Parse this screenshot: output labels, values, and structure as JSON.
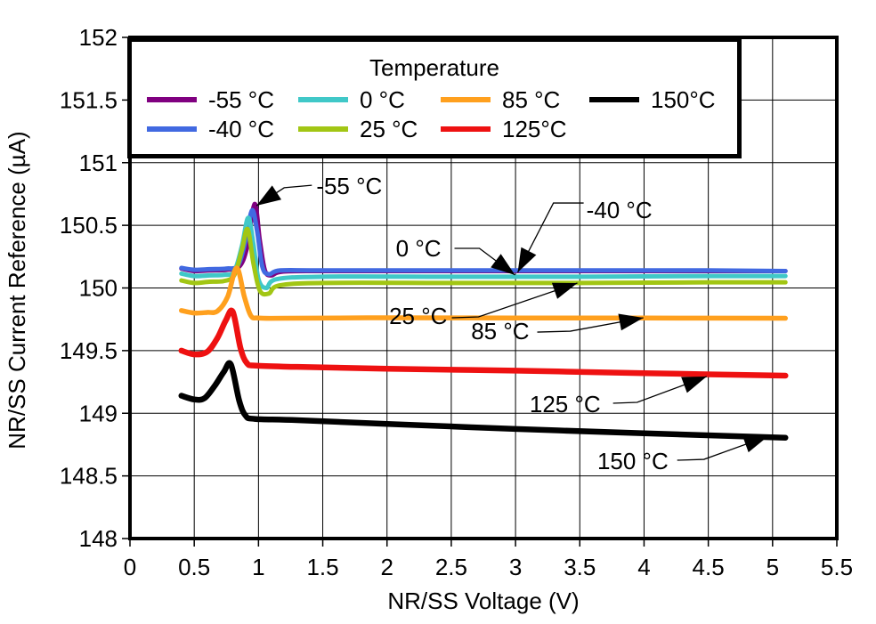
{
  "chart_data": {
    "type": "line",
    "title": "",
    "xlabel": "NR/SS Voltage (V)",
    "ylabel": "NR/SS Current Reference (µA)",
    "xlim": [
      0,
      5.5
    ],
    "ylim": [
      148,
      152
    ],
    "xticks": [
      0,
      0.5,
      1,
      1.5,
      2,
      2.5,
      3,
      3.5,
      4,
      4.5,
      5,
      5.5
    ],
    "yticks": [
      148,
      148.5,
      149,
      149.5,
      150,
      150.5,
      151,
      151.5,
      152
    ],
    "grid": true,
    "legend": {
      "title": "Temperature",
      "position": "top-left-inside",
      "columns": [
        [
          0,
          1
        ],
        [
          2,
          3
        ],
        [
          4,
          5
        ],
        [
          6
        ]
      ]
    },
    "series": [
      {
        "name": "-55 °C",
        "color": "#800080",
        "width": 5,
        "points": [
          [
            0.4,
            150.155
          ],
          [
            0.5,
            150.135
          ],
          [
            0.62,
            150.14
          ],
          [
            0.75,
            150.145
          ],
          [
            0.85,
            150.17
          ],
          [
            0.91,
            150.32
          ],
          [
            0.97,
            150.67
          ],
          [
            1.01,
            150.38
          ],
          [
            1.05,
            150.14
          ],
          [
            1.1,
            150.1
          ],
          [
            1.18,
            150.13
          ],
          [
            1.5,
            150.135
          ],
          [
            2.5,
            150.135
          ],
          [
            3.5,
            150.135
          ],
          [
            4.5,
            150.135
          ],
          [
            5.1,
            150.135
          ]
        ]
      },
      {
        "name": "-40 °C",
        "color": "#4169E1",
        "width": 5,
        "points": [
          [
            0.4,
            150.16
          ],
          [
            0.5,
            150.145
          ],
          [
            0.62,
            150.15
          ],
          [
            0.75,
            150.155
          ],
          [
            0.84,
            150.18
          ],
          [
            0.9,
            150.38
          ],
          [
            0.95,
            150.62
          ],
          [
            0.99,
            150.45
          ],
          [
            1.03,
            150.17
          ],
          [
            1.08,
            150.11
          ],
          [
            1.17,
            150.14
          ],
          [
            1.5,
            150.14
          ],
          [
            2.5,
            150.14
          ],
          [
            3.5,
            150.14
          ],
          [
            4.5,
            150.14
          ],
          [
            5.1,
            150.135
          ]
        ]
      },
      {
        "name": "0 °C",
        "color": "#40C8C8",
        "width": 5,
        "points": [
          [
            0.4,
            150.115
          ],
          [
            0.5,
            150.095
          ],
          [
            0.62,
            150.1
          ],
          [
            0.73,
            150.105
          ],
          [
            0.81,
            150.13
          ],
          [
            0.87,
            150.33
          ],
          [
            0.92,
            150.56
          ],
          [
            0.96,
            150.35
          ],
          [
            1.0,
            150.07
          ],
          [
            1.06,
            150.0
          ],
          [
            1.14,
            150.07
          ],
          [
            1.5,
            150.09
          ],
          [
            2.5,
            150.09
          ],
          [
            3.5,
            150.09
          ],
          [
            4.5,
            150.095
          ],
          [
            5.1,
            150.095
          ]
        ]
      },
      {
        "name": "25 °C",
        "color": "#A2C614",
        "width": 5,
        "points": [
          [
            0.4,
            150.06
          ],
          [
            0.5,
            150.04
          ],
          [
            0.62,
            150.05
          ],
          [
            0.73,
            150.055
          ],
          [
            0.81,
            150.1
          ],
          [
            0.87,
            150.3
          ],
          [
            0.915,
            150.47
          ],
          [
            0.96,
            150.2
          ],
          [
            1.01,
            149.98
          ],
          [
            1.08,
            149.955
          ],
          [
            1.16,
            150.02
          ],
          [
            1.5,
            150.04
          ],
          [
            2.5,
            150.04
          ],
          [
            3.5,
            150.04
          ],
          [
            4.5,
            150.045
          ],
          [
            5.1,
            150.045
          ]
        ]
      },
      {
        "name": "85 °C",
        "color": "#FFA01E",
        "width": 5.5,
        "points": [
          [
            0.4,
            149.82
          ],
          [
            0.5,
            149.8
          ],
          [
            0.6,
            149.805
          ],
          [
            0.68,
            149.815
          ],
          [
            0.76,
            149.93
          ],
          [
            0.83,
            150.16
          ],
          [
            0.89,
            149.93
          ],
          [
            0.94,
            149.78
          ],
          [
            1.0,
            149.76
          ],
          [
            1.2,
            149.758
          ],
          [
            2.0,
            149.762
          ],
          [
            3.0,
            149.76
          ],
          [
            4.0,
            149.76
          ],
          [
            5.1,
            149.758
          ]
        ]
      },
      {
        "name": "125°C",
        "color": "#EE1111",
        "width": 6.5,
        "points": [
          [
            0.4,
            149.5
          ],
          [
            0.5,
            149.47
          ],
          [
            0.6,
            149.49
          ],
          [
            0.68,
            149.6
          ],
          [
            0.745,
            149.74
          ],
          [
            0.8,
            149.81
          ],
          [
            0.86,
            149.52
          ],
          [
            0.91,
            149.4
          ],
          [
            0.98,
            149.38
          ],
          [
            1.3,
            149.37
          ],
          [
            2.0,
            149.355
          ],
          [
            3.0,
            149.34
          ],
          [
            4.0,
            149.32
          ],
          [
            5.1,
            149.3
          ]
        ]
      },
      {
        "name": "150°C",
        "color": "#000000",
        "width": 6.5,
        "points": [
          [
            0.4,
            149.14
          ],
          [
            0.5,
            149.11
          ],
          [
            0.58,
            149.12
          ],
          [
            0.66,
            149.22
          ],
          [
            0.73,
            149.33
          ],
          [
            0.785,
            149.39
          ],
          [
            0.85,
            149.1
          ],
          [
            0.9,
            148.98
          ],
          [
            0.97,
            148.955
          ],
          [
            1.3,
            148.945
          ],
          [
            2.0,
            148.915
          ],
          [
            3.0,
            148.875
          ],
          [
            4.0,
            148.84
          ],
          [
            5.1,
            148.805
          ]
        ]
      }
    ],
    "annotations": [
      {
        "label": "-55 °C",
        "anchor": "start",
        "label_xy": [
          1.45,
          150.75
        ],
        "leader": [
          [
            1.415,
            150.82
          ],
          [
            1.2,
            150.8
          ],
          [
            0.985,
            150.657
          ]
        ]
      },
      {
        "label": "0 °C",
        "anchor": "end",
        "label_xy": [
          2.421,
          150.252
        ],
        "leader": [
          [
            2.525,
            150.316
          ],
          [
            2.719,
            150.316
          ],
          [
            2.996,
            150.103
          ]
        ]
      },
      {
        "label": "-40 °C",
        "anchor": "start",
        "label_xy": [
          3.551,
          150.558
        ],
        "leader": [
          [
            3.53,
            150.678
          ],
          [
            3.295,
            150.678
          ],
          [
            3.017,
            150.124
          ]
        ]
      },
      {
        "label": "25 °C",
        "anchor": "end",
        "label_xy": [
          2.469,
          149.712
        ],
        "leader": [
          [
            2.504,
            149.762
          ],
          [
            2.712,
            149.769
          ],
          [
            3.481,
            150.039
          ]
        ]
      },
      {
        "label": "85 °C",
        "anchor": "end",
        "label_xy": [
          3.107,
          149.591
        ],
        "leader": [
          [
            3.169,
            149.648
          ],
          [
            3.426,
            149.655
          ],
          [
            3.995,
            149.762
          ]
        ]
      },
      {
        "label": "125 °C",
        "anchor": "end",
        "label_xy": [
          3.662,
          149.009
        ],
        "leader": [
          [
            3.759,
            149.08
          ],
          [
            3.946,
            149.087
          ],
          [
            4.487,
            149.293
          ]
        ]
      },
      {
        "label": "150 °C",
        "anchor": "end",
        "label_xy": [
          4.189,
          148.554
        ],
        "leader": [
          [
            4.258,
            148.625
          ],
          [
            4.466,
            148.632
          ],
          [
            4.966,
            148.817
          ]
        ]
      }
    ]
  }
}
